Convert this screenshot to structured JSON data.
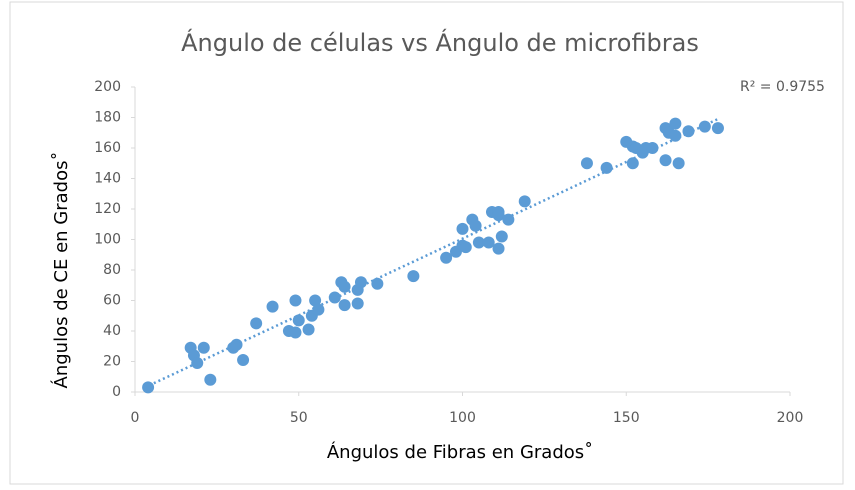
{
  "chart_data": {
    "type": "scatter",
    "title": "Ángulo de células vs Ángulo de microfibras",
    "x_label": "Ángulos de Fibras en Grados˚",
    "y_label": "Ángulos de CE en Grados˚",
    "annotation": "R² = 0.9755",
    "color": "#5b9bd5",
    "xlim": [
      0,
      200
    ],
    "xticks": [
      0,
      50,
      100,
      150,
      200
    ],
    "ylim": [
      0,
      200
    ],
    "yticks": [
      0,
      20,
      40,
      60,
      80,
      100,
      120,
      140,
      160,
      180,
      200
    ],
    "trendline": {
      "x": [
        3,
        178
      ],
      "y": [
        3,
        179
      ]
    },
    "series": [
      {
        "name": "Ángulo de CE",
        "color": "#5b9bd5",
        "x": [
          4,
          17,
          18,
          19,
          21,
          23,
          30,
          31,
          33,
          37,
          42,
          47,
          49,
          49,
          50,
          53,
          54,
          55,
          56,
          61,
          63,
          64,
          64,
          68,
          68,
          69,
          74,
          85,
          95,
          98,
          100,
          101,
          100,
          103,
          104,
          105,
          108,
          109,
          111,
          111,
          111,
          112,
          114,
          119,
          138,
          144,
          150,
          152,
          152,
          153,
          155,
          156,
          158,
          162,
          162,
          163,
          165,
          165,
          166,
          169,
          174,
          178
        ],
        "values": [
          3,
          29,
          24,
          19,
          29,
          8,
          29,
          31,
          21,
          45,
          56,
          40,
          60,
          39,
          47,
          41,
          50,
          60,
          54,
          62,
          72,
          69,
          57,
          58,
          67,
          72,
          71,
          76,
          88,
          92,
          96,
          95,
          107,
          113,
          109,
          98,
          98,
          118,
          118,
          116,
          94,
          102,
          113,
          125,
          150,
          147,
          164,
          161,
          150,
          160,
          157,
          160,
          160,
          152,
          173,
          170,
          176,
          168,
          150,
          171,
          174,
          173
        ]
      }
    ]
  }
}
